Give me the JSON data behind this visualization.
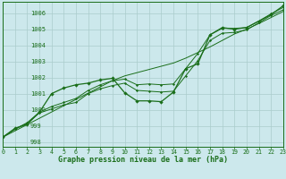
{
  "title": "Graphe pression niveau de la mer (hPa)",
  "background_color": "#cce8ec",
  "grid_color": "#aacccc",
  "line_color": "#1a6e1a",
  "ylim": [
    997.7,
    1006.7
  ],
  "xlim": [
    0,
    23
  ],
  "yticks": [
    998,
    999,
    1000,
    1001,
    1002,
    1003,
    1004,
    1005,
    1006
  ],
  "xticks": [
    0,
    1,
    2,
    3,
    4,
    5,
    6,
    7,
    8,
    9,
    10,
    11,
    12,
    13,
    14,
    15,
    16,
    17,
    18,
    19,
    20,
    21,
    22,
    23
  ],
  "x_labels": [
    "0",
    "1",
    "2",
    "3",
    "4",
    "5",
    "6",
    "7",
    "8",
    "9",
    "10",
    "11",
    "12",
    "13",
    "14",
    "15",
    "16",
    "17",
    "18",
    "19",
    "20",
    "21",
    "22",
    "23"
  ],
  "line_straight": [
    998.3,
    998.69,
    999.08,
    999.47,
    999.86,
    1000.25,
    1000.64,
    1001.03,
    1001.42,
    1001.81,
    1002.1,
    1002.3,
    1002.5,
    1002.7,
    1002.9,
    1003.2,
    1003.55,
    1003.9,
    1004.3,
    1004.7,
    1005.0,
    1005.35,
    1005.72,
    1006.1
  ],
  "line_upper": [
    998.3,
    998.8,
    999.2,
    999.85,
    1000.2,
    1000.45,
    1000.7,
    1001.2,
    1001.55,
    1001.8,
    1001.9,
    1001.55,
    1001.6,
    1001.55,
    1001.6,
    1002.55,
    1003.5,
    1004.65,
    1005.05,
    1005.05,
    1005.1,
    1005.5,
    1005.95,
    1006.35
  ],
  "line_lower": [
    998.3,
    998.8,
    999.15,
    999.8,
    1000.05,
    1000.3,
    1000.45,
    1001.0,
    1001.3,
    1001.5,
    1001.65,
    1001.2,
    1001.15,
    1001.1,
    1001.15,
    1002.1,
    1003.05,
    1004.3,
    1004.75,
    1004.8,
    1004.95,
    1005.4,
    1005.85,
    1006.2
  ],
  "line_jagged": [
    998.3,
    998.85,
    999.1,
    999.85,
    1001.0,
    1001.35,
    1001.55,
    1001.65,
    1001.85,
    1001.95,
    1001.05,
    1000.55,
    1000.55,
    1000.5,
    1001.1,
    1002.55,
    1002.85,
    1004.65,
    1005.1,
    1005.0,
    1005.1,
    1005.5,
    1005.9,
    1006.45
  ]
}
